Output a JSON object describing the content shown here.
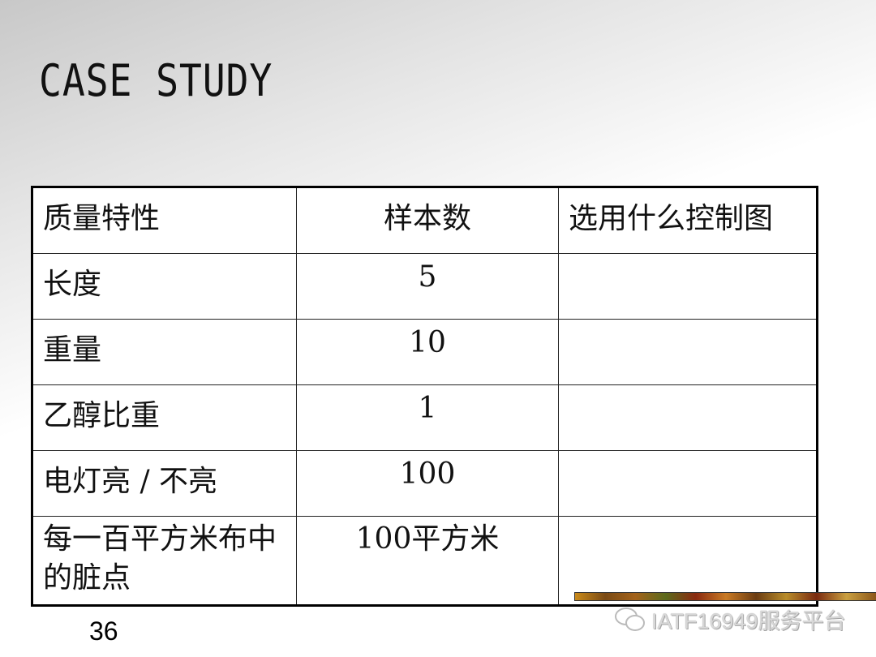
{
  "slide": {
    "title": "CASE STUDY",
    "page_number": "36"
  },
  "table": {
    "headers": [
      "质量特性",
      "样本数",
      "选用什么控制图"
    ],
    "rows": [
      [
        "长度",
        "5",
        ""
      ],
      [
        "重量",
        "10",
        ""
      ],
      [
        "乙醇比重",
        "1",
        ""
      ],
      [
        "电灯亮 / 不亮",
        "100",
        ""
      ],
      [
        "每一百平方米布中的脏点",
        "100平方米",
        ""
      ]
    ]
  },
  "watermark": {
    "text": "IATF16949服务平台",
    "icon": "wechat-icon"
  }
}
